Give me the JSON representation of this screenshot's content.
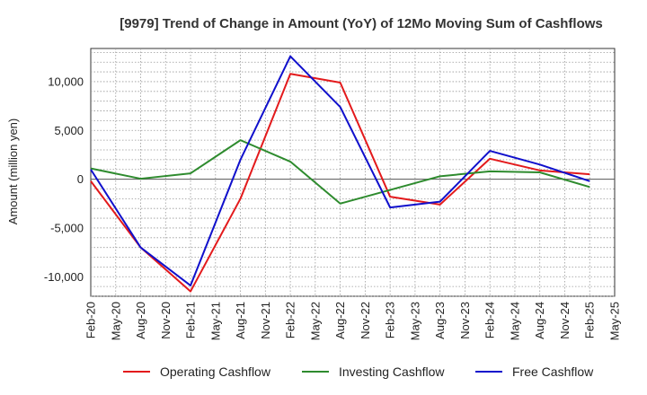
{
  "chart_data": {
    "type": "line",
    "title": "[9979]  Trend of Change in Amount (YoY) of 12Mo Moving Sum of Cashflows",
    "xlabel": "",
    "ylabel": "Amount (million yen)",
    "ylim": [
      -12000,
      13400
    ],
    "yticks": [
      {
        "value": 10000,
        "label": "10,000"
      },
      {
        "value": 5000,
        "label": "5,000"
      },
      {
        "value": 0,
        "label": "0"
      },
      {
        "value": -5000,
        "label": "-5,000"
      },
      {
        "value": -10000,
        "label": "-10,000"
      }
    ],
    "x_ticks": [
      "Feb-20",
      "May-20",
      "Aug-20",
      "Nov-20",
      "Feb-21",
      "May-21",
      "Aug-21",
      "Nov-21",
      "Feb-22",
      "May-22",
      "Aug-22",
      "Nov-22",
      "Feb-23",
      "May-23",
      "Aug-23",
      "Nov-23",
      "Feb-24",
      "May-24",
      "Aug-24",
      "Nov-24",
      "Feb-25",
      "May-25"
    ],
    "categories": [
      "Feb-20",
      "Aug-20",
      "Feb-21",
      "Aug-21",
      "Feb-22",
      "Aug-22",
      "Feb-23",
      "Aug-23",
      "Feb-24",
      "Aug-24",
      "Feb-25"
    ],
    "grid": true,
    "legend_position": "bottom",
    "series": [
      {
        "name": "Operating Cashflow",
        "color": "#e31a1c",
        "values": [
          -200,
          -7000,
          -11500,
          -2000,
          10800,
          9900,
          -1800,
          -2600,
          2100,
          900,
          500
        ]
      },
      {
        "name": "Investing Cashflow",
        "color": "#2e8b2e",
        "values": [
          1100,
          50,
          600,
          4000,
          1800,
          -2500,
          -1100,
          300,
          800,
          700,
          -800
        ]
      },
      {
        "name": "Free Cashflow",
        "color": "#1010cc",
        "values": [
          1000,
          -7000,
          -10900,
          2000,
          12600,
          7400,
          -2900,
          -2300,
          2900,
          1500,
          -200
        ]
      }
    ]
  }
}
